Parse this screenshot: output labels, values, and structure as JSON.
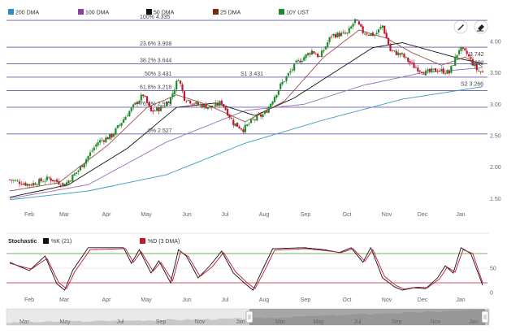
{
  "legend": {
    "items": [
      {
        "label": "200 DMA",
        "color": "#2a8fbf"
      },
      {
        "label": "100 DMA",
        "color": "#8b3f9e"
      },
      {
        "label": "50 DMA",
        "color": "#111111"
      },
      {
        "label": "25 DMA",
        "color": "#7a2a10"
      },
      {
        "label": "10Y UST",
        "color": "#1f8a2a"
      }
    ]
  },
  "toolbar": {
    "draw_icon": "pencil-icon",
    "erase_icon": "eraser-icon"
  },
  "colors": {
    "up": "#1f8a2a",
    "down": "#c0162f",
    "ma200": "#3b9bbf",
    "ma100": "#9a6fb0",
    "ma50": "#111111",
    "ma25": "#9a5040",
    "fibline": "#4a3f9a",
    "greenline": "#4a9a3a",
    "redline": "#c0162f"
  },
  "stochastic": {
    "title": "Stochastic",
    "k_label": "%K (21)",
    "d_label": "%D (3 DMA)",
    "k_color": "#111111",
    "d_color": "#c0162f"
  },
  "chart_data": [
    {
      "type": "line",
      "title": "",
      "series_note": "10Y UST daily price",
      "x_ticks": [
        "Feb",
        "Mar",
        "Apr",
        "May",
        "Jun",
        "Jul",
        "Aug",
        "Sep",
        "Oct",
        "Nov",
        "Dec",
        "Jan"
      ],
      "ylim": [
        1.4,
        4.4
      ],
      "y_ticks": [
        "4.00",
        "3.50",
        "3.00",
        "2.50",
        "2.00",
        "1.50"
      ],
      "fib_levels": [
        {
          "label": "100% 4.335",
          "value": 4.335
        },
        {
          "label": "23.6% 3.908",
          "value": 3.908
        },
        {
          "label": "38.2% 3.644",
          "value": 3.644
        },
        {
          "label": "50% 3.431",
          "value": 3.431
        },
        {
          "label": "61.8% 3.218",
          "value": 3.218
        },
        {
          "label": "76.4% 2.953",
          "value": 2.953
        },
        {
          "label": "0% 2.527",
          "value": 2.527
        }
      ],
      "support_resistance": [
        {
          "label": "S1 3.431",
          "value": 3.431
        },
        {
          "label": "S2 3.266",
          "value": 3.266
        }
      ],
      "right_labels": [
        {
          "label": "3.742",
          "value": 3.742
        },
        {
          "label": "3.602",
          "value": 3.602
        }
      ],
      "price_anchors": [
        [
          0,
          1.8
        ],
        [
          10,
          1.72
        ],
        [
          20,
          1.82
        ],
        [
          28,
          1.72
        ],
        [
          35,
          1.95
        ],
        [
          45,
          2.4
        ],
        [
          52,
          2.5
        ],
        [
          60,
          2.85
        ],
        [
          68,
          3.15
        ],
        [
          72,
          2.88
        ],
        [
          78,
          2.95
        ],
        [
          82,
          3.1
        ],
        [
          86,
          3.42
        ],
        [
          89,
          3.1
        ],
        [
          95,
          3.0
        ],
        [
          103,
          2.95
        ],
        [
          108,
          3.03
        ],
        [
          114,
          2.7
        ],
        [
          119,
          2.6
        ],
        [
          124,
          2.75
        ],
        [
          130,
          2.85
        ],
        [
          138,
          3.3
        ],
        [
          146,
          3.65
        ],
        [
          154,
          3.85
        ],
        [
          158,
          3.75
        ],
        [
          164,
          4.1
        ],
        [
          172,
          4.12
        ],
        [
          176,
          4.335
        ],
        [
          180,
          4.15
        ],
        [
          186,
          4.1
        ],
        [
          190,
          4.25
        ],
        [
          194,
          3.85
        ],
        [
          200,
          3.78
        ],
        [
          206,
          3.6
        ],
        [
          212,
          3.5
        ],
        [
          218,
          3.55
        ],
        [
          224,
          3.5
        ],
        [
          229,
          3.88
        ],
        [
          233,
          3.8
        ],
        [
          238,
          3.55
        ],
        [
          241,
          3.5
        ]
      ],
      "ma200_anchors": [
        [
          0,
          1.48
        ],
        [
          40,
          1.62
        ],
        [
          80,
          1.88
        ],
        [
          120,
          2.38
        ],
        [
          160,
          2.75
        ],
        [
          200,
          3.08
        ],
        [
          241,
          3.28
        ]
      ],
      "ma100_anchors": [
        [
          0,
          1.5
        ],
        [
          40,
          1.72
        ],
        [
          80,
          2.4
        ],
        [
          120,
          2.9
        ],
        [
          150,
          3.0
        ],
        [
          180,
          3.3
        ],
        [
          210,
          3.5
        ],
        [
          241,
          3.58
        ]
      ],
      "ma50_anchors": [
        [
          0,
          1.52
        ],
        [
          30,
          1.72
        ],
        [
          60,
          2.3
        ],
        [
          85,
          2.95
        ],
        [
          105,
          3.02
        ],
        [
          125,
          2.82
        ],
        [
          145,
          3.1
        ],
        [
          165,
          3.5
        ],
        [
          185,
          3.9
        ],
        [
          200,
          3.98
        ],
        [
          215,
          3.85
        ],
        [
          230,
          3.72
        ],
        [
          241,
          3.65
        ]
      ],
      "ma25_anchors": [
        [
          0,
          1.62
        ],
        [
          25,
          1.75
        ],
        [
          50,
          2.35
        ],
        [
          70,
          2.95
        ],
        [
          85,
          3.15
        ],
        [
          100,
          3.0
        ],
        [
          120,
          2.72
        ],
        [
          140,
          3.05
        ],
        [
          160,
          3.75
        ],
        [
          178,
          4.18
        ],
        [
          192,
          4.05
        ],
        [
          205,
          3.82
        ],
        [
          220,
          3.62
        ],
        [
          232,
          3.75
        ],
        [
          241,
          3.6
        ]
      ]
    },
    {
      "type": "line",
      "title": "Stochastic",
      "x_ticks": [
        "Feb",
        "Mar",
        "Apr",
        "May",
        "Jun",
        "Jul",
        "Aug",
        "Sep",
        "Oct",
        "Nov",
        "Dec",
        "Jan"
      ],
      "ylim": [
        0,
        100
      ],
      "y_ticks": [
        "50",
        "0"
      ],
      "levels": [
        {
          "value": 80,
          "color": "green"
        },
        {
          "value": 20,
          "color": "red"
        }
      ],
      "series": [
        {
          "name": "%K (21)",
          "anchors": [
            [
              0,
              62
            ],
            [
              10,
              45
            ],
            [
              18,
              75
            ],
            [
              24,
              18
            ],
            [
              28,
              5
            ],
            [
              32,
              45
            ],
            [
              40,
              92
            ],
            [
              58,
              92
            ],
            [
              62,
              60
            ],
            [
              66,
              88
            ],
            [
              72,
              40
            ],
            [
              76,
              65
            ],
            [
              82,
              20
            ],
            [
              86,
              88
            ],
            [
              90,
              75
            ],
            [
              96,
              30
            ],
            [
              102,
              55
            ],
            [
              108,
              85
            ],
            [
              114,
              40
            ],
            [
              120,
              18
            ],
            [
              124,
              5
            ],
            [
              128,
              40
            ],
            [
              134,
              90
            ],
            [
              150,
              92
            ],
            [
              160,
              88
            ],
            [
              168,
              82
            ],
            [
              174,
              92
            ],
            [
              180,
              62
            ],
            [
              184,
              92
            ],
            [
              190,
              30
            ],
            [
              196,
              12
            ],
            [
              200,
              5
            ],
            [
              206,
              10
            ],
            [
              212,
              8
            ],
            [
              218,
              30
            ],
            [
              222,
              55
            ],
            [
              226,
              40
            ],
            [
              230,
              92
            ],
            [
              235,
              80
            ],
            [
              241,
              15
            ]
          ]
        },
        {
          "name": "%D (3 DMA)",
          "anchors": [
            [
              0,
              60
            ],
            [
              11,
              48
            ],
            [
              19,
              70
            ],
            [
              25,
              20
            ],
            [
              29,
              8
            ],
            [
              33,
              42
            ],
            [
              41,
              88
            ],
            [
              59,
              90
            ],
            [
              63,
              62
            ],
            [
              67,
              84
            ],
            [
              73,
              44
            ],
            [
              77,
              62
            ],
            [
              83,
              24
            ],
            [
              87,
              84
            ],
            [
              91,
              74
            ],
            [
              97,
              33
            ],
            [
              103,
              52
            ],
            [
              109,
              82
            ],
            [
              115,
              43
            ],
            [
              121,
              20
            ],
            [
              125,
              8
            ],
            [
              129,
              38
            ],
            [
              135,
              87
            ],
            [
              151,
              90
            ],
            [
              161,
              86
            ],
            [
              169,
              82
            ],
            [
              175,
              90
            ],
            [
              181,
              64
            ],
            [
              185,
              88
            ],
            [
              191,
              33
            ],
            [
              197,
              14
            ],
            [
              201,
              7
            ],
            [
              207,
              11
            ],
            [
              213,
              10
            ],
            [
              219,
              28
            ],
            [
              223,
              52
            ],
            [
              227,
              42
            ],
            [
              231,
              88
            ],
            [
              236,
              80
            ],
            [
              241,
              20
            ]
          ]
        }
      ]
    }
  ],
  "navigator": {
    "labels": [
      "Mar",
      "May",
      "Jul",
      "Sep",
      "Nov",
      "Jan",
      "Mar",
      "May",
      "Jul",
      "Sep",
      "Nov",
      "Jan"
    ],
    "left_handle": "handle-grip-icon",
    "right_handle": "handle-grip-icon"
  }
}
